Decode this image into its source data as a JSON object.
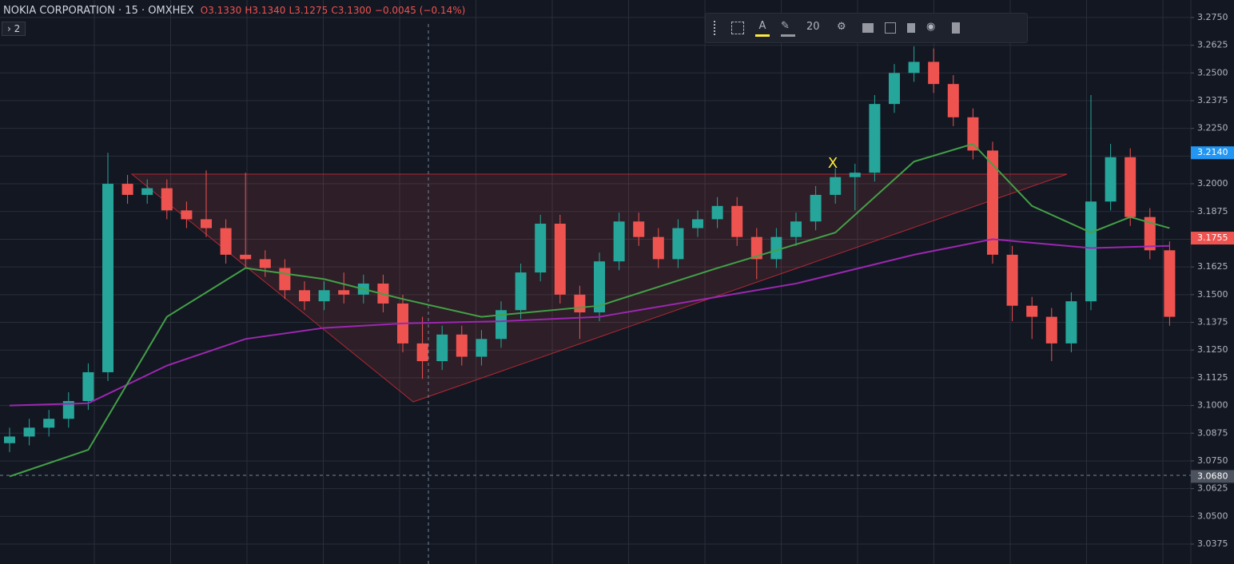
{
  "header": {
    "symbol": "NOKIA CORPORATION",
    "interval": "15",
    "exchange": "OMXHEX",
    "ohlc": [
      [
        "O",
        "3.1330"
      ],
      [
        "H",
        "3.1340"
      ],
      [
        "L",
        "3.1275"
      ],
      [
        "C",
        "3.1300"
      ]
    ],
    "change": "−0.0045 (−0.14%)",
    "indicators_badge": "2"
  },
  "toolbar": {
    "size": "20"
  },
  "annotation": "X",
  "chart_data": {
    "type": "candlestick",
    "ylim": [
      3.0285,
      3.2829
    ],
    "yticks": [
      {
        "value": 3.275,
        "label": "3.2750"
      },
      {
        "value": 3.2625,
        "label": "3.2625"
      },
      {
        "value": 3.25,
        "label": "3.2500"
      },
      {
        "value": 3.2375,
        "label": "3.2375"
      },
      {
        "value": 3.225,
        "label": "3.2250"
      },
      {
        "value": 3.2125,
        "label": "3.2125"
      },
      {
        "value": 3.2,
        "label": "3.2000"
      },
      {
        "value": 3.1875,
        "label": "3.1875"
      },
      {
        "value": 3.175,
        "label": "3.1750"
      },
      {
        "value": 3.1625,
        "label": "3.1625"
      },
      {
        "value": 3.15,
        "label": "3.1500"
      },
      {
        "value": 3.1375,
        "label": "3.1375"
      },
      {
        "value": 3.125,
        "label": "3.1250"
      },
      {
        "value": 3.1125,
        "label": "3.1125"
      },
      {
        "value": 3.1,
        "label": "3.1000"
      },
      {
        "value": 3.0875,
        "label": "3.0875"
      },
      {
        "value": 3.075,
        "label": "3.0750"
      },
      {
        "value": 3.0625,
        "label": "3.0625"
      },
      {
        "value": 3.05,
        "label": "3.0500"
      },
      {
        "value": 3.0375,
        "label": "3.0375"
      }
    ],
    "grid": true,
    "up_color": "#26a69a",
    "down_color": "#ef5350",
    "open": [
      3.083,
      3.086,
      3.09,
      3.094,
      3.102,
      3.115,
      3.2,
      3.195,
      3.198,
      3.188,
      3.184,
      3.18,
      3.168,
      3.166,
      3.162,
      3.152,
      3.147,
      3.152,
      3.15,
      3.155,
      3.146,
      3.128,
      3.12,
      3.132,
      3.122,
      3.13,
      3.143,
      3.16,
      3.182,
      3.15,
      3.142,
      3.165,
      3.183,
      3.176,
      3.166,
      3.18,
      3.184,
      3.19,
      3.176,
      3.166,
      3.176,
      3.183,
      3.195,
      3.203,
      3.205,
      3.236,
      3.25,
      3.255,
      3.245,
      3.23,
      3.215,
      3.168,
      3.145,
      3.14,
      3.128,
      3.147,
      3.192,
      3.212,
      3.185,
      3.17
    ],
    "high": [
      3.09,
      3.094,
      3.098,
      3.106,
      3.119,
      3.214,
      3.204,
      3.202,
      3.202,
      3.192,
      3.206,
      3.184,
      3.205,
      3.17,
      3.166,
      3.156,
      3.156,
      3.16,
      3.159,
      3.159,
      3.15,
      3.14,
      3.136,
      3.136,
      3.134,
      3.147,
      3.164,
      3.186,
      3.186,
      3.154,
      3.169,
      3.187,
      3.187,
      3.18,
      3.184,
      3.188,
      3.194,
      3.194,
      3.18,
      3.18,
      3.187,
      3.199,
      3.207,
      3.209,
      3.24,
      3.254,
      3.262,
      3.261,
      3.249,
      3.234,
      3.219,
      3.172,
      3.149,
      3.144,
      3.151,
      3.24,
      3.218,
      3.216,
      3.189,
      3.174
    ],
    "low": [
      3.079,
      3.082,
      3.086,
      3.09,
      3.098,
      3.111,
      3.191,
      3.191,
      3.184,
      3.18,
      3.176,
      3.164,
      3.162,
      3.158,
      3.148,
      3.143,
      3.143,
      3.146,
      3.146,
      3.142,
      3.124,
      3.112,
      3.116,
      3.118,
      3.118,
      3.126,
      3.139,
      3.156,
      3.146,
      3.13,
      3.138,
      3.161,
      3.172,
      3.162,
      3.162,
      3.176,
      3.18,
      3.172,
      3.157,
      3.162,
      3.172,
      3.179,
      3.191,
      3.188,
      3.201,
      3.232,
      3.246,
      3.241,
      3.226,
      3.211,
      3.164,
      3.138,
      3.13,
      3.12,
      3.124,
      3.143,
      3.188,
      3.181,
      3.166,
      3.136
    ],
    "close": [
      3.086,
      3.09,
      3.094,
      3.102,
      3.115,
      3.2,
      3.195,
      3.198,
      3.188,
      3.184,
      3.18,
      3.168,
      3.166,
      3.162,
      3.152,
      3.147,
      3.152,
      3.15,
      3.155,
      3.146,
      3.128,
      3.12,
      3.132,
      3.122,
      3.13,
      3.143,
      3.16,
      3.182,
      3.15,
      3.142,
      3.165,
      3.183,
      3.176,
      3.166,
      3.18,
      3.184,
      3.19,
      3.176,
      3.166,
      3.176,
      3.183,
      3.195,
      3.203,
      3.205,
      3.236,
      3.25,
      3.255,
      3.245,
      3.23,
      3.215,
      3.168,
      3.145,
      3.14,
      3.128,
      3.147,
      3.192,
      3.212,
      3.185,
      3.17,
      3.14
    ],
    "lines": [
      {
        "color": "#9c27b0",
        "x": [
          0,
          4,
          8,
          12,
          16,
          20,
          25,
          30,
          40,
          46,
          50,
          55,
          59
        ],
        "values": [
          3.1,
          3.101,
          3.118,
          3.13,
          3.135,
          3.137,
          3.138,
          3.14,
          3.155,
          3.168,
          3.175,
          3.171,
          3.172
        ]
      },
      {
        "color": "#43a047",
        "x": [
          0,
          4,
          8,
          12,
          16,
          20,
          24,
          30,
          36,
          42,
          46,
          49,
          52,
          55,
          57,
          59
        ],
        "values": [
          3.068,
          3.08,
          3.14,
          3.162,
          3.157,
          3.148,
          3.14,
          3.145,
          3.162,
          3.178,
          3.21,
          3.218,
          3.19,
          3.178,
          3.185,
          3.18
        ]
      }
    ],
    "price_labels": [
      {
        "value": 3.214,
        "label": "3.2140",
        "color": "#2196f3"
      },
      {
        "value": 3.1755,
        "label": "3.1755",
        "color": "#ef5350"
      },
      {
        "value": 3.068,
        "label": "3.0680",
        "color": "#4c525e"
      }
    ]
  }
}
